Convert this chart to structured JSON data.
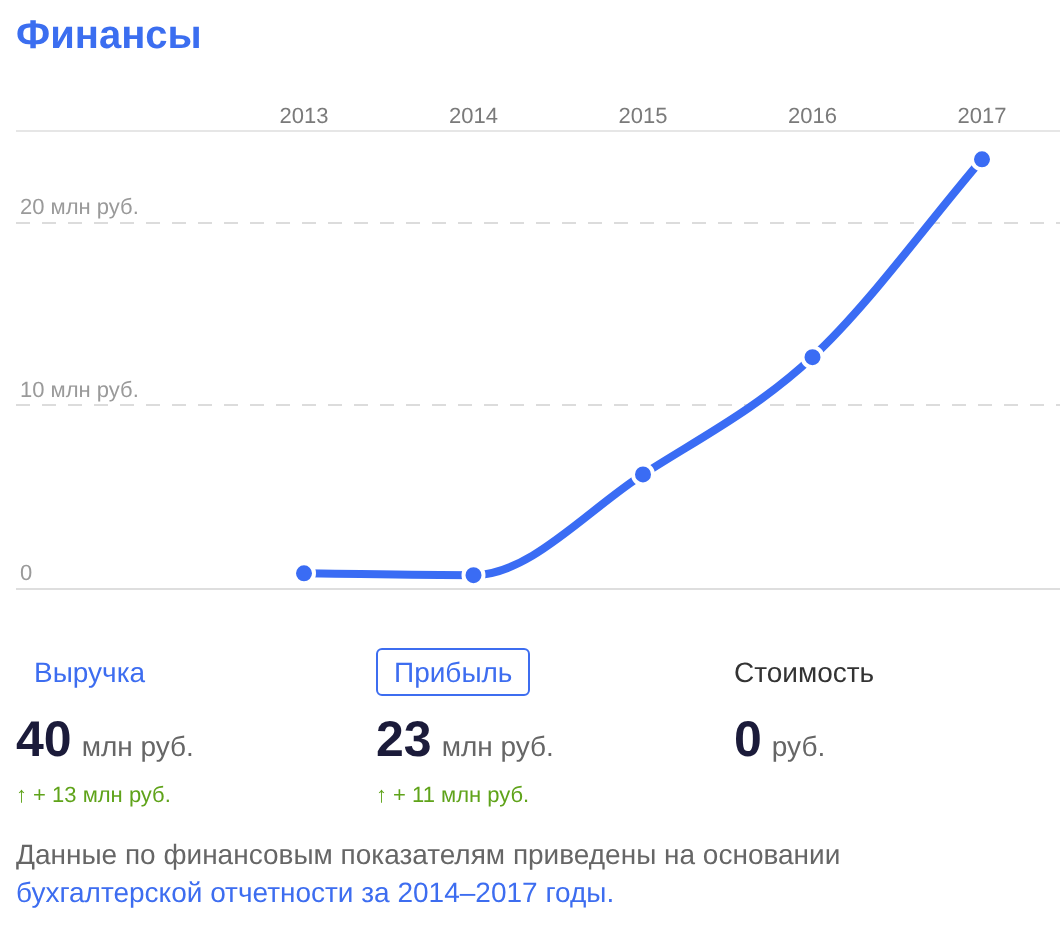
{
  "chart_data": [
    {
      "type": "line",
      "title": "Финансы",
      "categories": [
        "2013",
        "2014",
        "2015",
        "2016",
        "2017"
      ],
      "values": [
        0.8,
        0.7,
        6.2,
        12.6,
        23.4
      ],
      "color": "#3a6cf4",
      "ylim": [
        0,
        25
      ],
      "yticks": [
        0,
        {
          "value": 10,
          "label": "10 млн руб."
        },
        {
          "value": 20,
          "label": "20 млн руб."
        }
      ],
      "grid": "y",
      "marker": "circle",
      "line_style": "solid"
    },
    {
      "type": "other",
      "annotations": [
        "Выручка",
        "Прибыль",
        "Стоимость",
        "40",
        "млн руб.",
        "23",
        "млн руб.",
        "0",
        "руб.",
        "↑ + 13 млн руб.",
        "↑ + 11 млн руб.",
        "Данные по финансовым показателям приведены на основании",
        "бухгалтерской отчетности за 2014–2017 годы."
      ]
    }
  ]
}
